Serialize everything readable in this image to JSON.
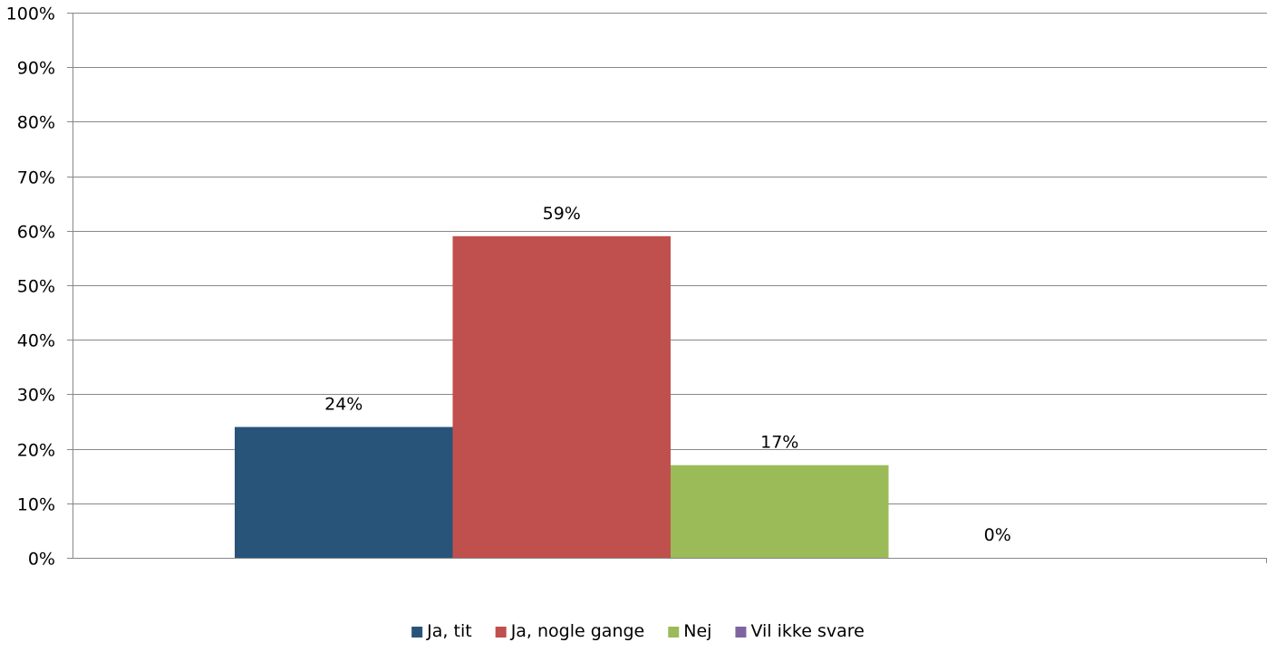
{
  "chart_data": {
    "type": "bar",
    "title": "",
    "xlabel": "",
    "ylabel": "",
    "ylim": [
      0,
      100
    ],
    "yticks": [
      0,
      10,
      20,
      30,
      40,
      50,
      60,
      70,
      80,
      90,
      100
    ],
    "ytick_labels": [
      "0%",
      "10%",
      "20%",
      "30%",
      "40%",
      "50%",
      "60%",
      "70%",
      "80%",
      "90%",
      "100%"
    ],
    "grid": true,
    "legend_position": "bottom-center",
    "series": [
      {
        "name": "Ja, tit",
        "values": [
          24
        ],
        "label": "24%",
        "color": "#28547A"
      },
      {
        "name": "Ja, nogle gange",
        "values": [
          59
        ],
        "label": "59%",
        "color": "#C0504D"
      },
      {
        "name": "Nej",
        "values": [
          17
        ],
        "label": "17%",
        "color": "#9BBB59"
      },
      {
        "name": "Vil ikke svare",
        "values": [
          0
        ],
        "label": "0%",
        "color": "#8064A2"
      }
    ]
  }
}
